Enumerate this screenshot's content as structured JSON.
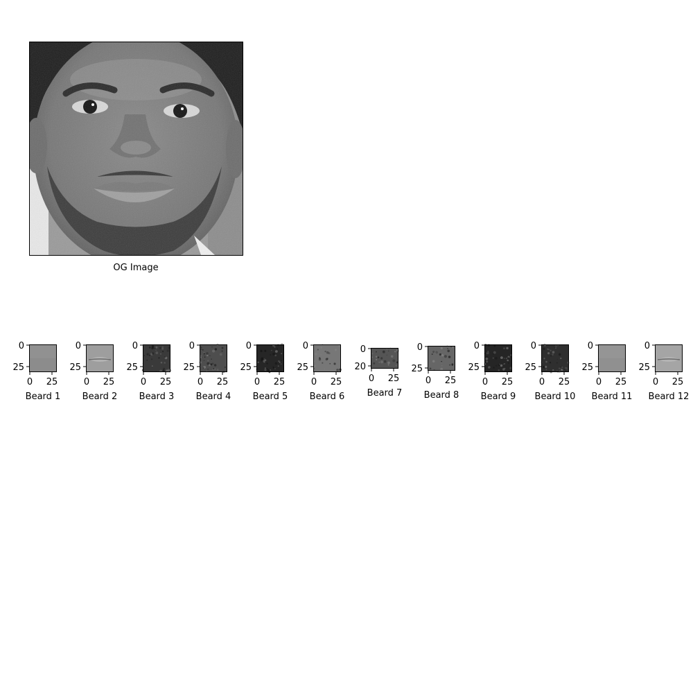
{
  "main_image": {
    "label": "OG Image",
    "description_tag": "grayscale-face-photo"
  },
  "patches": [
    {
      "label": "Beard 1",
      "shade": "#8c8c8c",
      "texture": "smooth",
      "x_ticks": [
        "0",
        "25"
      ],
      "y_ticks": [
        "0",
        "25"
      ]
    },
    {
      "label": "Beard 2",
      "shade": "#9e9e9e",
      "texture": "lip",
      "x_ticks": [
        "0",
        "25"
      ],
      "y_ticks": [
        "0",
        "25"
      ]
    },
    {
      "label": "Beard 3",
      "shade": "#3a3a3a",
      "texture": "stubble",
      "x_ticks": [
        "0",
        "25"
      ],
      "y_ticks": [
        "0",
        "25"
      ]
    },
    {
      "label": "Beard 4",
      "shade": "#4e4e4e",
      "texture": "stubble",
      "x_ticks": [
        "0",
        "25"
      ],
      "y_ticks": [
        "0",
        "25"
      ]
    },
    {
      "label": "Beard 5",
      "shade": "#262626",
      "texture": "stubble",
      "x_ticks": [
        "0",
        "25"
      ],
      "y_ticks": [
        "0",
        "25"
      ]
    },
    {
      "label": "Beard 6",
      "shade": "#777777",
      "texture": "grain",
      "x_ticks": [
        "0",
        "25"
      ],
      "y_ticks": [
        "0",
        "25"
      ]
    },
    {
      "label": "Beard 7",
      "shade": "#555555",
      "texture": "grain",
      "x_ticks": [
        "0",
        "25"
      ],
      "y_ticks": [
        "0",
        "20"
      ]
    },
    {
      "label": "Beard 8",
      "shade": "#666666",
      "texture": "grain",
      "x_ticks": [
        "0",
        "25"
      ],
      "y_ticks": [
        "0",
        "25"
      ]
    },
    {
      "label": "Beard 9",
      "shade": "#252525",
      "texture": "stubble",
      "x_ticks": [
        "0",
        "25"
      ],
      "y_ticks": [
        "0",
        "25"
      ]
    },
    {
      "label": "Beard 10",
      "shade": "#2f2f2f",
      "texture": "stubble",
      "x_ticks": [
        "0",
        "25"
      ],
      "y_ticks": [
        "0",
        "25"
      ]
    },
    {
      "label": "Beard 11",
      "shade": "#909090",
      "texture": "smooth",
      "x_ticks": [
        "0",
        "25"
      ],
      "y_ticks": [
        "0",
        "25"
      ]
    },
    {
      "label": "Beard 12",
      "shade": "#a5a5a5",
      "texture": "lip",
      "x_ticks": [
        "0",
        "25"
      ],
      "y_ticks": [
        "0",
        "25"
      ]
    }
  ]
}
